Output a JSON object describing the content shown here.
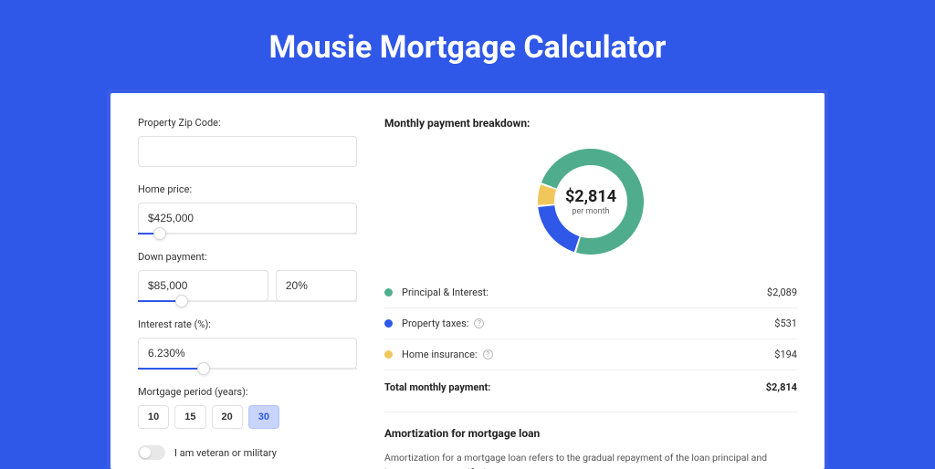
{
  "title": "Mousie Mortgage Calculator",
  "colors": {
    "page_bg": "#2f57e8",
    "accent": "#2f57e8",
    "principal": "#4fad8e",
    "taxes": "#2f57e8",
    "insurance": "#f1c75b"
  },
  "form": {
    "zip": {
      "label": "Property Zip Code:",
      "value": ""
    },
    "home_price": {
      "label": "Home price:",
      "value": "$425,000",
      "slider_pct": 10
    },
    "down_payment": {
      "label": "Down payment:",
      "amount": "$85,000",
      "percent": "20%",
      "slider_pct": 20
    },
    "interest_rate": {
      "label": "Interest rate (%):",
      "value": "6.230%",
      "slider_pct": 30
    },
    "period": {
      "label": "Mortgage period (years):",
      "options": [
        "10",
        "15",
        "20",
        "30"
      ],
      "selected": "30"
    },
    "veteran": {
      "label": "I am veteran or military",
      "checked": false
    }
  },
  "breakdown": {
    "heading": "Monthly payment breakdown:",
    "center_amount": "$2,814",
    "center_sub": "per month",
    "donut": {
      "type": "donut",
      "outer_r": 58,
      "inner_r": 40,
      "background": "#ffffff",
      "slices": [
        {
          "label": "Principal & Interest",
          "value": 2089,
          "pct": 74.2,
          "color": "#4fad8e"
        },
        {
          "label": "Property taxes",
          "value": 531,
          "pct": 18.9,
          "color": "#2f57e8"
        },
        {
          "label": "Home insurance",
          "value": 194,
          "pct": 6.9,
          "color": "#f1c75b"
        }
      ],
      "start_angle_deg": -160
    },
    "items": [
      {
        "label": "Principal & Interest:",
        "value": "$2,089",
        "color": "#4fad8e",
        "info": false
      },
      {
        "label": "Property taxes:",
        "value": "$531",
        "color": "#2f57e8",
        "info": true
      },
      {
        "label": "Home insurance:",
        "value": "$194",
        "color": "#f1c75b",
        "info": true
      }
    ],
    "total": {
      "label": "Total monthly payment:",
      "value": "$2,814"
    }
  },
  "amortization": {
    "heading": "Amortization for mortgage loan",
    "text": "Amortization for a mortgage loan refers to the gradual repayment of the loan principal and interest over a specified"
  }
}
